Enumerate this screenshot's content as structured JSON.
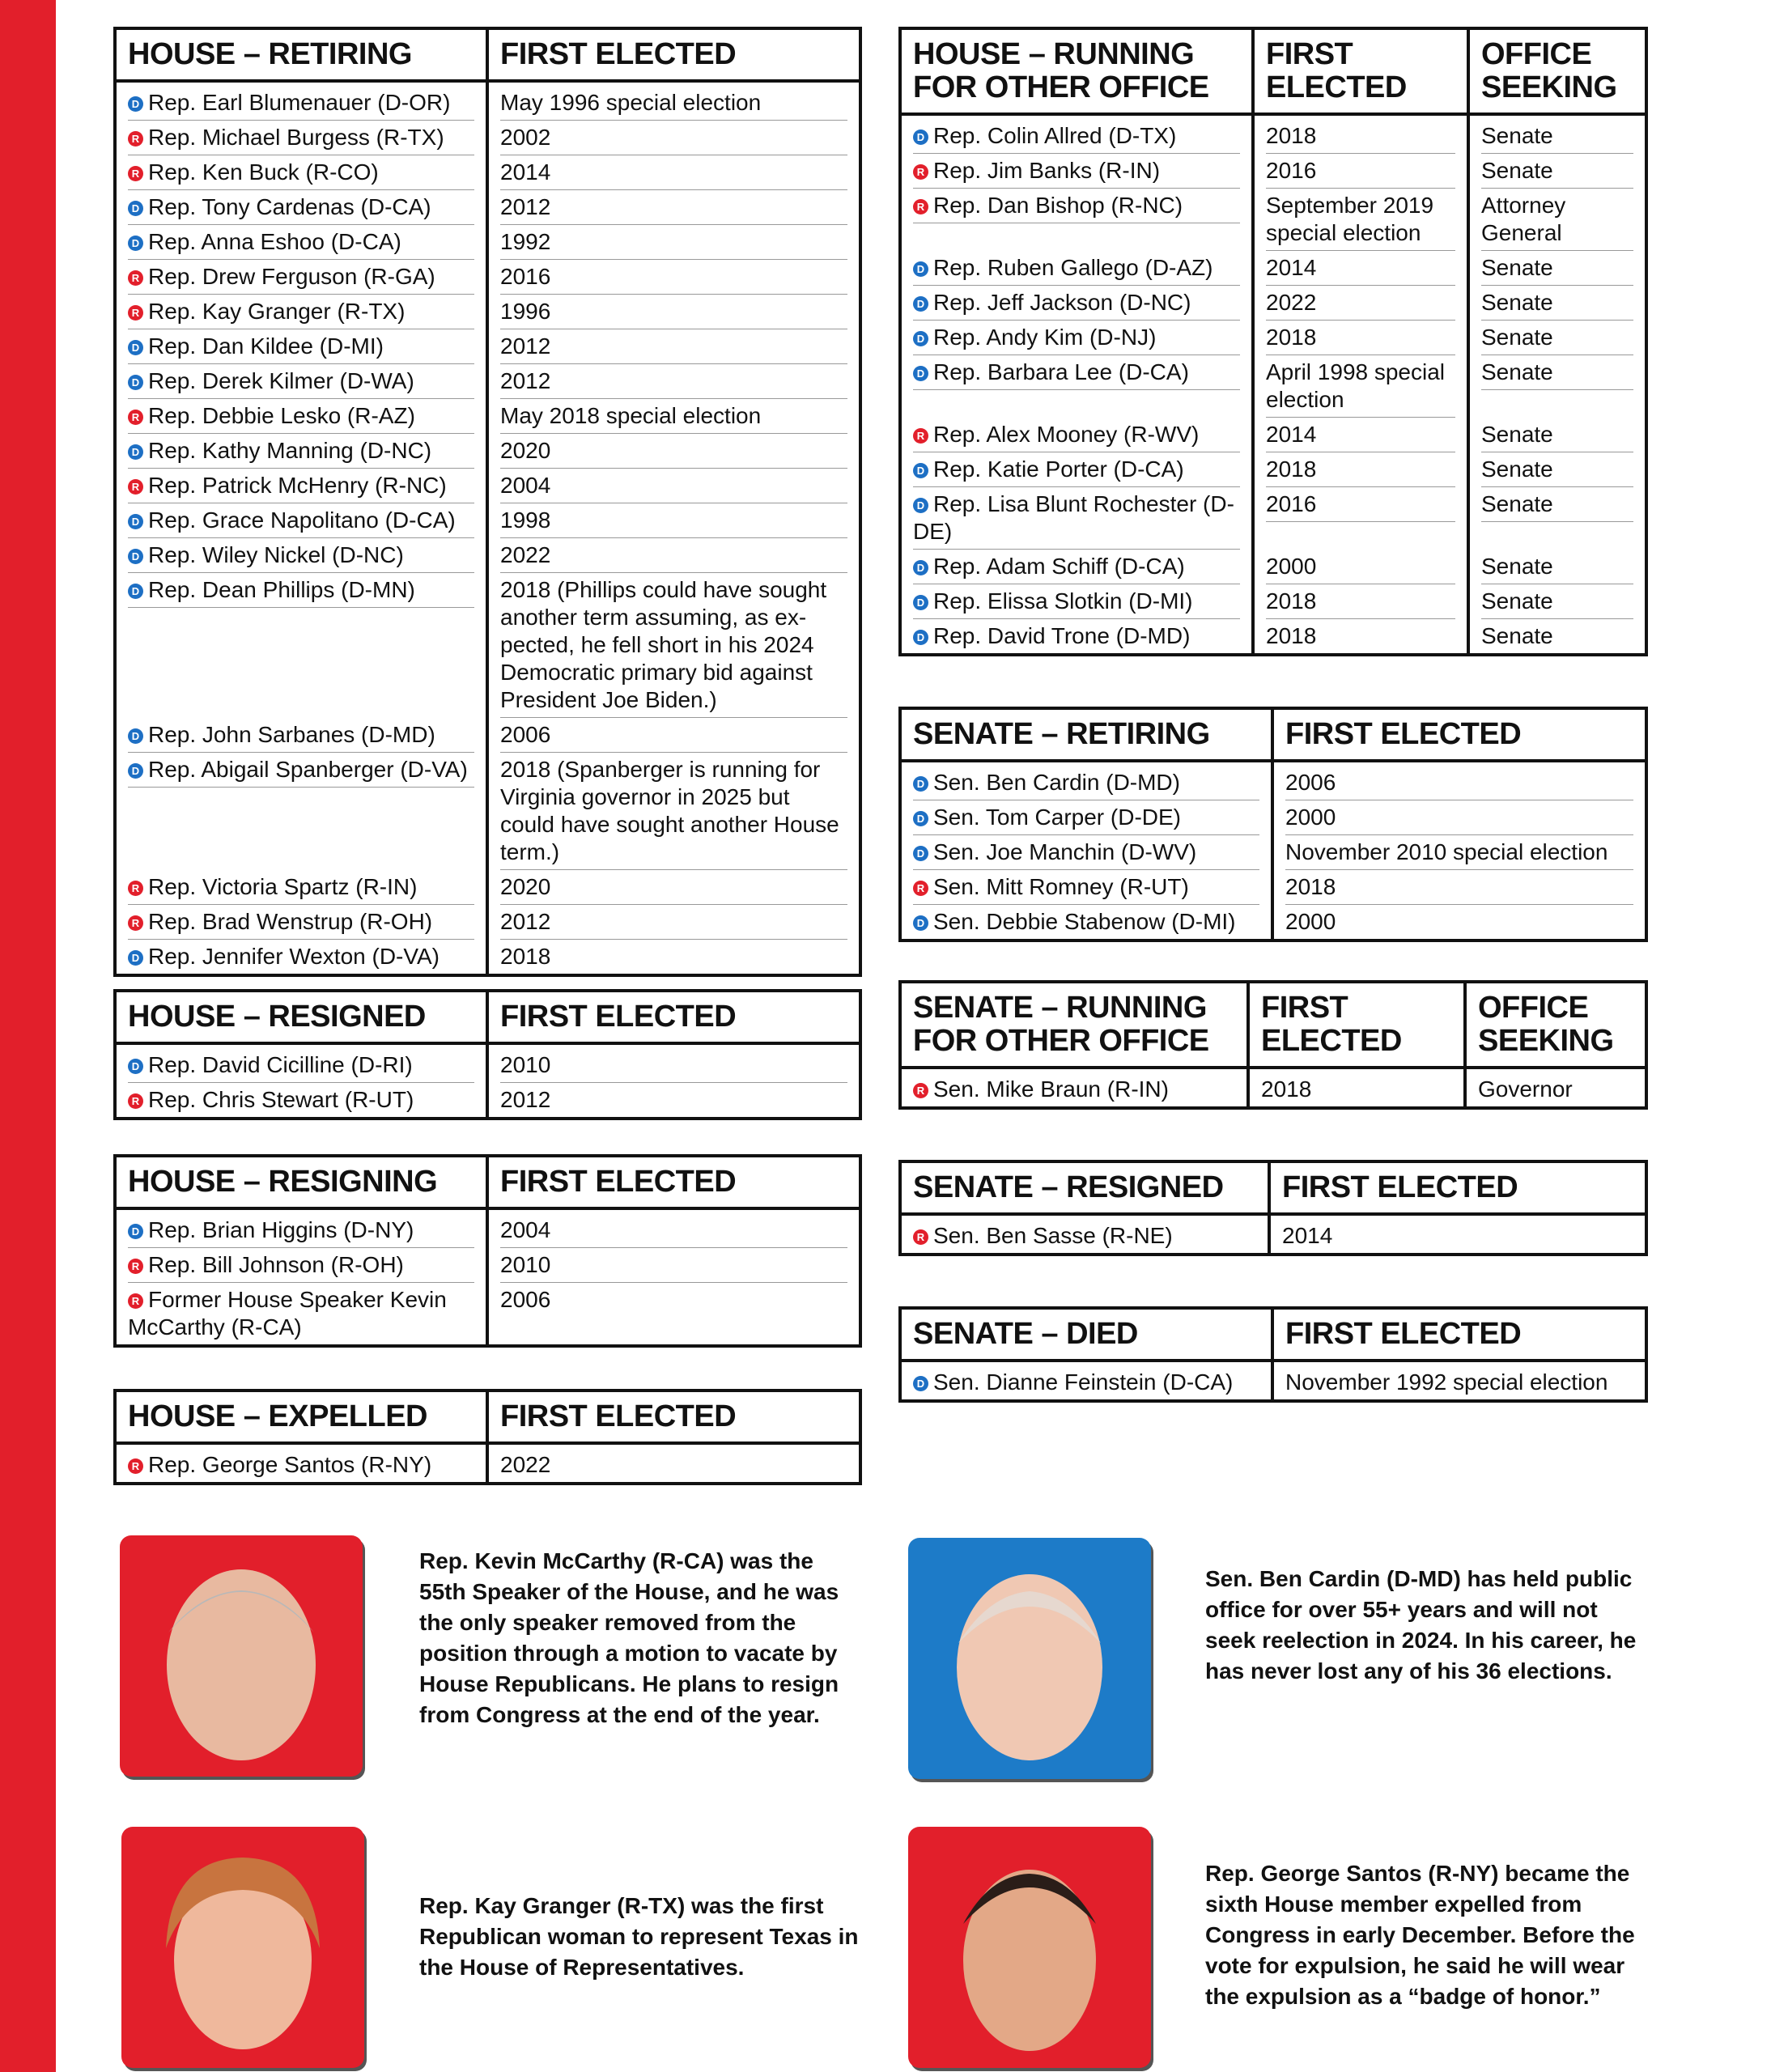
{
  "tables": [
    {
      "headers": [
        "HOUSE – RETIRING",
        "FIRST ELECTED"
      ],
      "rows": [
        {
          "party": "D",
          "cells": [
            "Rep. Earl Blumenauer (D-OR)",
            "May 1996 special election"
          ]
        },
        {
          "party": "R",
          "cells": [
            "Rep. Michael Burgess (R-TX)",
            "2002"
          ]
        },
        {
          "party": "R",
          "cells": [
            "Rep. Ken Buck (R-CO)",
            "2014"
          ]
        },
        {
          "party": "D",
          "cells": [
            "Rep. Tony Cardenas (D-CA)",
            "2012"
          ]
        },
        {
          "party": "D",
          "cells": [
            "Rep. Anna Eshoo (D-CA)",
            "1992"
          ]
        },
        {
          "party": "R",
          "cells": [
            "Rep. Drew Ferguson (R-GA)",
            "2016"
          ]
        },
        {
          "party": "R",
          "cells": [
            "Rep. Kay Granger (R-TX)",
            "1996"
          ]
        },
        {
          "party": "D",
          "cells": [
            "Rep. Dan Kildee (D-MI)",
            "2012"
          ]
        },
        {
          "party": "D",
          "cells": [
            "Rep. Derek Kilmer (D-WA)",
            "2012"
          ]
        },
        {
          "party": "R",
          "cells": [
            "Rep. Debbie Lesko (R-AZ)",
            "May 2018 special election"
          ]
        },
        {
          "party": "D",
          "cells": [
            "Rep. Kathy Manning (D-NC)",
            "2020"
          ]
        },
        {
          "party": "R",
          "cells": [
            "Rep. Patrick McHenry (R-NC)",
            "2004"
          ]
        },
        {
          "party": "D",
          "cells": [
            "Rep. Grace Napolitano (D-CA)",
            "1998"
          ]
        },
        {
          "party": "D",
          "cells": [
            "Rep. Wiley Nickel (D-NC)",
            "2022"
          ]
        },
        {
          "party": "D",
          "cells": [
            "Rep. Dean Phillips (D-MN)",
            "2018 (Phillips could have sought another term assuming, as ex-pected, he fell short in his 2024 Democratic primary bid against President Joe Biden.)"
          ]
        },
        {
          "party": "D",
          "cells": [
            "Rep. John Sarbanes (D-MD)",
            "2006"
          ]
        },
        {
          "party": "D",
          "cells": [
            "Rep. Abigail Spanberger (D-VA)",
            "2018 (Spanberger is running for Virginia governor in 2025 but could have sought another House term.)"
          ]
        },
        {
          "party": "R",
          "cells": [
            "Rep. Victoria Spartz (R-IN)",
            "2020"
          ]
        },
        {
          "party": "R",
          "cells": [
            "Rep. Brad Wenstrup (R-OH)",
            "2012"
          ]
        },
        {
          "party": "D",
          "cells": [
            "Rep. Jennifer Wexton (D-VA)",
            "2018"
          ]
        }
      ]
    },
    {
      "headers": [
        "HOUSE – RESIGNED",
        "FIRST ELECTED"
      ],
      "rows": [
        {
          "party": "D",
          "cells": [
            "Rep. David Cicilline (D-RI)",
            "2010"
          ]
        },
        {
          "party": "R",
          "cells": [
            "Rep. Chris Stewart (R-UT)",
            "2012"
          ]
        }
      ]
    },
    {
      "headers": [
        "HOUSE – RESIGNING",
        "FIRST ELECTED"
      ],
      "rows": [
        {
          "party": "D",
          "cells": [
            "Rep. Brian Higgins (D-NY)",
            "2004"
          ]
        },
        {
          "party": "R",
          "cells": [
            "Rep. Bill Johnson (R-OH)",
            "2010"
          ]
        },
        {
          "party": "R",
          "cells": [
            "Former House Speaker Kevin McCarthy (R-CA)",
            "2006"
          ]
        }
      ]
    },
    {
      "headers": [
        "HOUSE – EXPELLED",
        "FIRST ELECTED"
      ],
      "rows": [
        {
          "party": "R",
          "cells": [
            "Rep. George Santos (R-NY)",
            "2022"
          ]
        }
      ]
    },
    {
      "headers": [
        "HOUSE – RUNNING FOR OTHER OFFICE",
        "FIRST ELECTED",
        "OFFICE SEEKING"
      ],
      "rows": [
        {
          "party": "D",
          "cells": [
            "Rep. Colin Allred (D-TX)",
            "2018",
            "Senate"
          ]
        },
        {
          "party": "R",
          "cells": [
            "Rep. Jim Banks (R-IN)",
            "2016",
            "Senate"
          ]
        },
        {
          "party": "R",
          "cells": [
            "Rep. Dan Bishop (R-NC)",
            "September 2019 special election",
            "Attorney General"
          ]
        },
        {
          "party": "D",
          "cells": [
            "Rep. Ruben Gallego (D-AZ)",
            "2014",
            "Senate"
          ]
        },
        {
          "party": "D",
          "cells": [
            "Rep. Jeff Jackson (D-NC)",
            "2022",
            "Senate"
          ]
        },
        {
          "party": "D",
          "cells": [
            "Rep. Andy Kim (D-NJ)",
            "2018",
            "Senate"
          ]
        },
        {
          "party": "D",
          "cells": [
            "Rep. Barbara Lee (D-CA)",
            "April 1998 special election",
            "Senate"
          ]
        },
        {
          "party": "R",
          "cells": [
            "Rep. Alex Mooney (R-WV)",
            "2014",
            "Senate"
          ]
        },
        {
          "party": "D",
          "cells": [
            "Rep. Katie Porter (D-CA)",
            "2018",
            "Senate"
          ]
        },
        {
          "party": "D",
          "cells": [
            "Rep. Lisa Blunt Rochester (D-DE)",
            "2016",
            "Senate"
          ]
        },
        {
          "party": "D",
          "cells": [
            "Rep. Adam Schiff (D-CA)",
            "2000",
            "Senate"
          ]
        },
        {
          "party": "D",
          "cells": [
            "Rep. Elissa Slotkin (D-MI)",
            "2018",
            "Senate"
          ]
        },
        {
          "party": "D",
          "cells": [
            "Rep. David Trone (D-MD)",
            "2018",
            "Senate"
          ]
        }
      ]
    },
    {
      "headers": [
        "SENATE – RETIRING",
        "FIRST ELECTED"
      ],
      "rows": [
        {
          "party": "D",
          "cells": [
            "Sen. Ben Cardin (D-MD)",
            "2006"
          ]
        },
        {
          "party": "D",
          "cells": [
            "Sen. Tom Carper (D-DE)",
            "2000"
          ]
        },
        {
          "party": "D",
          "cells": [
            "Sen. Joe Manchin (D-WV)",
            "November 2010 special election"
          ]
        },
        {
          "party": "R",
          "cells": [
            "Sen. Mitt Romney (R-UT)",
            "2018"
          ]
        },
        {
          "party": "D",
          "cells": [
            "Sen. Debbie Stabenow (D-MI)",
            "2000"
          ]
        }
      ]
    },
    {
      "headers": [
        "SENATE – RUNNING FOR OTHER OFFICE",
        "FIRST ELECTED",
        "OFFICE SEEKING"
      ],
      "rows": [
        {
          "party": "R",
          "cells": [
            "Sen. Mike Braun (R-IN)",
            "2018",
            "Governor"
          ]
        }
      ]
    },
    {
      "headers": [
        "SENATE – RESIGNED",
        "FIRST ELECTED"
      ],
      "rows": [
        {
          "party": "R",
          "cells": [
            "Sen. Ben Sasse (R-NE)",
            "2014"
          ]
        }
      ]
    },
    {
      "headers": [
        "SENATE – DIED",
        "FIRST ELECTED"
      ],
      "rows": [
        {
          "party": "D",
          "cells": [
            "Sen. Dianne Feinstein (D-CA)",
            "November 1992 special election"
          ]
        }
      ]
    }
  ],
  "captions": [
    "Rep. Kevin McCarthy (R-CA) was the 55th Speaker of the House, and he was the only speaker removed from the position through a motion to vacate by House Republicans. He plans to resign from Congress at the end of the year.",
    "Sen. Ben Cardin (D-MD) has held public office for over 55+ years and will not seek reelection in 2024. In his career, he has never lost any of his 36 elections.",
    "Rep. Kay Granger (R-TX) was the first Republican woman to represent Texas in the House of Representatives.",
    "Rep. George Santos (R-NY) became the sixth House member expelled from Congress in early December. Before the vote for expulsion, he said he will wear the expulsion as a “badge of honor.”"
  ]
}
